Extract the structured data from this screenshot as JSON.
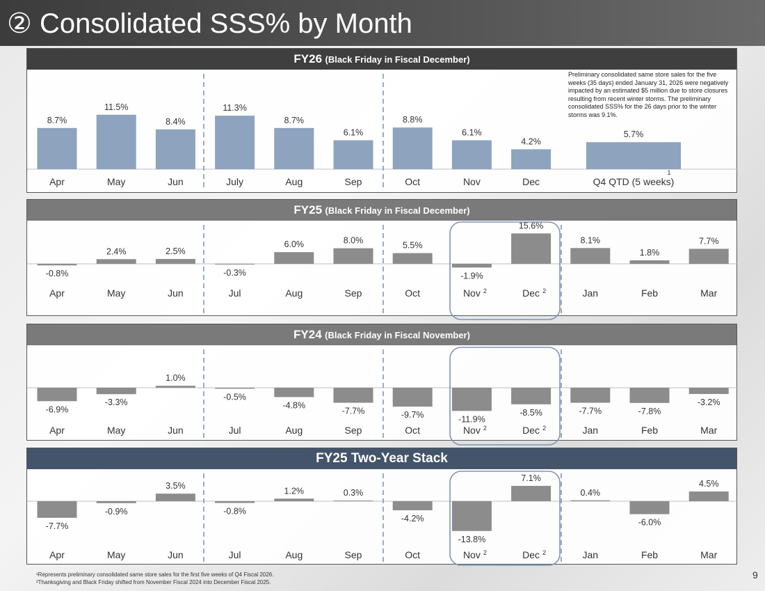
{
  "page": {
    "title": "② Consolidated SSS% by Month",
    "page_number": "9",
    "footnotes": [
      "¹Represents preliminary consolidated same store sales for the first five weeks of Q4 Fiscal 2026.",
      "²Thanksgiving and Black Friday shifted from November Fiscal 2024 into December Fiscal 2025."
    ]
  },
  "colors": {
    "fy26_bar": "#8ea3be",
    "gray_bar": "#8c8c8c",
    "header_dark": "#3f3f3f",
    "header_gray": "#7a7a7a",
    "header_navy": "#44546a",
    "divider": "#8296b4",
    "highlight_box": "#7f93b5"
  },
  "panels": {
    "fy26": {
      "title": "FY26",
      "subtitle": "(Black Friday in Fiscal December)",
      "note": "Preliminary consolidated same store sales for the five weeks (35 days) ended January 31, 2026 were negatively impacted by an estimated $5 million due to store closures resulting from recent winter storms. The preliminary consolidated SSS% for the 26 days prior to the winter storms was 9.1%."
    },
    "fy25": {
      "title": "FY25",
      "subtitle": "(Black Friday in Fiscal December)"
    },
    "fy24": {
      "title": "FY24",
      "subtitle": "(Black Friday in Fiscal November)"
    },
    "stack": {
      "title": "FY25 Two-Year Stack",
      "subtitle": ""
    }
  },
  "chart_data": [
    {
      "id": "fy26",
      "type": "bar",
      "title": "FY26 (Black Friday in Fiscal December)",
      "categories": [
        "Apr",
        "May",
        "Jun",
        "July",
        "Aug",
        "Sep",
        "Oct",
        "Nov",
        "Dec",
        "Q4 QTD (5 weeks)"
      ],
      "values": [
        8.7,
        11.5,
        8.4,
        11.3,
        8.7,
        6.1,
        8.8,
        6.1,
        4.2,
        5.7
      ],
      "labels": [
        "8.7%",
        "11.5%",
        "8.4%",
        "11.3%",
        "8.7%",
        "6.1%",
        "8.8%",
        "6.1%",
        "4.2%",
        "5.7%"
      ],
      "superscripts": {
        "9": "1"
      },
      "ylabel": "",
      "xlabel": ""
    },
    {
      "id": "fy25",
      "type": "bar",
      "title": "FY25 (Black Friday in Fiscal December)",
      "categories": [
        "Apr",
        "May",
        "Jun",
        "Jul",
        "Aug",
        "Sep",
        "Oct",
        "Nov",
        "Dec",
        "Jan",
        "Feb",
        "Mar"
      ],
      "values": [
        -0.8,
        2.4,
        2.5,
        -0.3,
        6.0,
        8.0,
        5.5,
        -1.9,
        15.6,
        8.1,
        1.8,
        7.7
      ],
      "labels": [
        "-0.8%",
        "2.4%",
        "2.5%",
        "-0.3%",
        "6.0%",
        "8.0%",
        "5.5%",
        "-1.9%",
        "15.6%",
        "8.1%",
        "1.8%",
        "7.7%"
      ],
      "superscripts": {
        "7": "2",
        "8": "2"
      },
      "highlight": [
        "Nov",
        "Dec"
      ]
    },
    {
      "id": "fy24",
      "type": "bar",
      "title": "FY24 (Black Friday in Fiscal November)",
      "categories": [
        "Apr",
        "May",
        "Jun",
        "Jul",
        "Aug",
        "Sep",
        "Oct",
        "Nov",
        "Dec",
        "Jan",
        "Feb",
        "Mar"
      ],
      "values": [
        -6.9,
        -3.3,
        1.0,
        -0.5,
        -4.8,
        -7.7,
        -9.7,
        -11.9,
        -8.5,
        -7.7,
        -7.8,
        -3.2
      ],
      "labels": [
        "-6.9%",
        "-3.3%",
        "1.0%",
        "-0.5%",
        "-4.8%",
        "-7.7%",
        "-9.7%",
        "-11.9%",
        "-8.5%",
        "-7.7%",
        "-7.8%",
        "-3.2%"
      ],
      "superscripts": {
        "7": "2",
        "8": "2"
      },
      "highlight": [
        "Nov",
        "Dec"
      ]
    },
    {
      "id": "stack",
      "type": "bar",
      "title": "FY25 Two-Year Stack",
      "categories": [
        "Apr",
        "May",
        "Jun",
        "Jul",
        "Aug",
        "Sep",
        "Oct",
        "Nov",
        "Dec",
        "Jan",
        "Feb",
        "Mar"
      ],
      "values": [
        -7.7,
        -0.9,
        3.5,
        -0.8,
        1.2,
        0.3,
        -4.2,
        -13.8,
        7.1,
        0.4,
        -6.0,
        4.5
      ],
      "labels": [
        "-7.7%",
        "-0.9%",
        "3.5%",
        "-0.8%",
        "1.2%",
        "0.3%",
        "-4.2%",
        "-13.8%",
        "7.1%",
        "0.4%",
        "-6.0%",
        "4.5%"
      ],
      "superscripts": {
        "7": "2",
        "8": "2"
      },
      "highlight": [
        "Nov",
        "Dec"
      ]
    }
  ]
}
